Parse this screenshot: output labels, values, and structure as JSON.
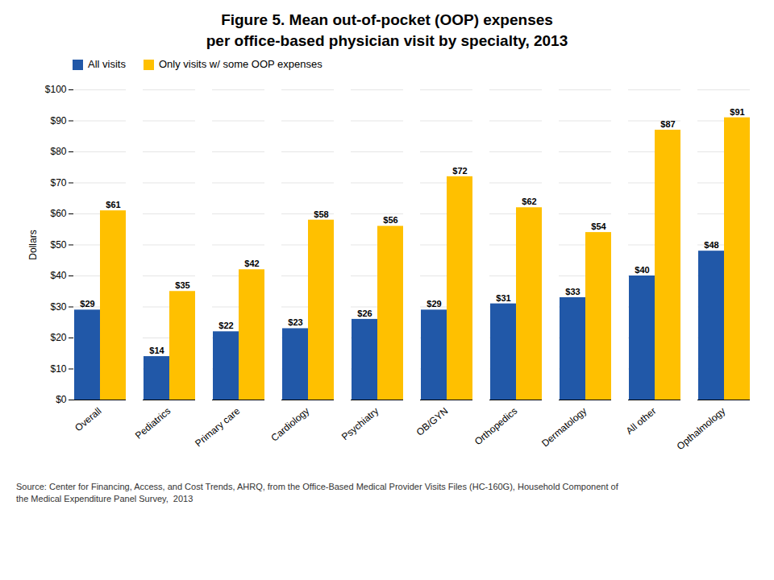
{
  "chart_data": {
    "type": "bar",
    "title": "Figure 5. Mean out-of-pocket (OOP) expenses",
    "subtitle": "per office-based physician visit by specialty, 2013",
    "y_label": "Dollars",
    "categories": [
      "Overall",
      "Pediatrics",
      "Primary care",
      "Cardiology",
      "Psychiatry",
      "OB/GYN",
      "Orthopedics",
      "Dermatology",
      "All other",
      "Opthalmology"
    ],
    "series": [
      {
        "name": "All visits",
        "color": "#2158A8",
        "values": [
          29,
          14,
          22,
          23,
          26,
          29,
          31,
          33,
          40,
          48
        ],
        "value_labels": [
          "$29",
          "$14",
          "$22",
          "$23",
          "$26",
          "$29",
          "$31",
          "$33",
          "$40",
          "$48"
        ]
      },
      {
        "name": "Only visits w/ some OOP expenses",
        "color": "#FFC000",
        "values": [
          61,
          35,
          42,
          58,
          56,
          72,
          62,
          54,
          87,
          91
        ],
        "value_labels": [
          "$61",
          "$35",
          "$42",
          "$58",
          "$56",
          "$72",
          "$62",
          "$54",
          "$87",
          "$91"
        ]
      }
    ],
    "ylim": [
      0,
      100
    ],
    "yticks": [
      {
        "value": 0,
        "label": "$0"
      },
      {
        "value": 10,
        "label": "$10"
      },
      {
        "value": 20,
        "label": "$20"
      },
      {
        "value": 30,
        "label": "$30"
      },
      {
        "value": 40,
        "label": "$40"
      },
      {
        "value": 50,
        "label": "$50"
      },
      {
        "value": 60,
        "label": "$60"
      },
      {
        "value": 70,
        "label": "$70"
      },
      {
        "value": 80,
        "label": "$80"
      },
      {
        "value": 90,
        "label": "$90"
      },
      {
        "value": 100,
        "label": "$100"
      }
    ],
    "grid": true,
    "legend": "upper left",
    "data_labels": true,
    "annotations": [
      "Source: Center for Financing, Access, and Cost Trends, AHRQ, from the Office-Based Medical Provider Visits Files (HC-160G), Household Component of\nthe Medical Expenditure Panel Survey,  2013"
    ]
  }
}
